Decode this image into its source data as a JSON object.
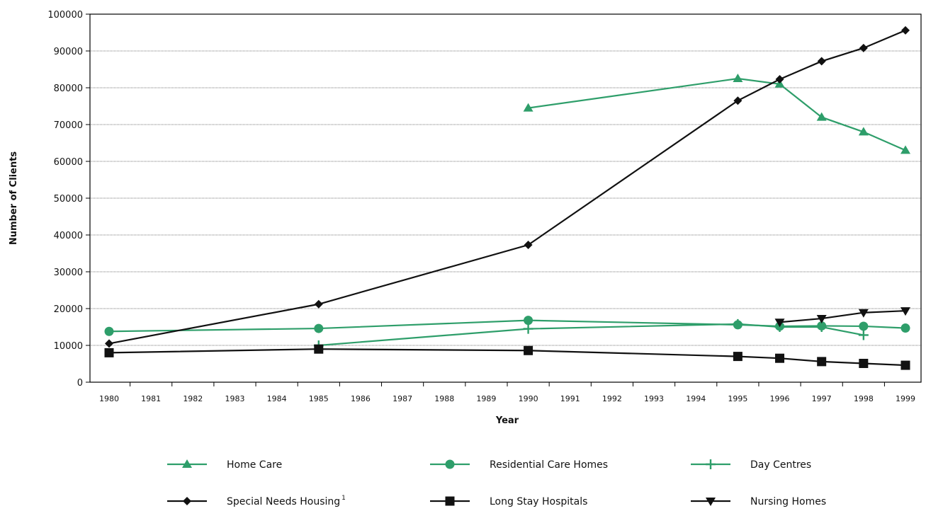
{
  "chart_data": {
    "type": "line",
    "xlabel": "Year",
    "ylabel": "Number of Clients",
    "ylim": [
      0,
      100000
    ],
    "yticks": [
      0,
      10000,
      20000,
      30000,
      40000,
      50000,
      60000,
      70000,
      80000,
      90000,
      100000
    ],
    "xlim": [
      1980,
      1999
    ],
    "xticks": [
      1980,
      1981,
      1982,
      1983,
      1984,
      1985,
      1986,
      1987,
      1988,
      1989,
      1990,
      1991,
      1992,
      1993,
      1994,
      1995,
      1996,
      1997,
      1998,
      1999
    ],
    "grid": "horizontal",
    "legend_placement": "bottom",
    "series": [
      {
        "name": "Home Care",
        "color": "#2e9e6a",
        "marker": "triangle-up",
        "x": [
          1990,
          1995,
          1996,
          1997,
          1998,
          1999
        ],
        "values": [
          74500,
          82500,
          81000,
          72000,
          68000,
          63000
        ]
      },
      {
        "name": "Residential Care Homes",
        "color": "#2e9e6a",
        "marker": "circle",
        "x": [
          1980,
          1985,
          1990,
          1995,
          1996,
          1997,
          1998,
          1999
        ],
        "values": [
          13800,
          14600,
          16800,
          15600,
          15200,
          15300,
          15200,
          14700
        ]
      },
      {
        "name": "Day Centres",
        "color": "#2e9e6a",
        "marker": "plus",
        "x": [
          1985,
          1990,
          1995,
          1996,
          1997,
          1998
        ],
        "values": [
          10000,
          14500,
          15800,
          15000,
          15000,
          12800
        ]
      },
      {
        "name": "Special Needs Housing",
        "name_sup": "1",
        "color": "#111111",
        "marker": "diamond",
        "x": [
          1980,
          1985,
          1990,
          1995,
          1996,
          1997,
          1998,
          1999
        ],
        "values": [
          10500,
          21200,
          37300,
          76500,
          82300,
          87200,
          90800,
          95600
        ]
      },
      {
        "name": "Long Stay Hospitals",
        "color": "#111111",
        "marker": "square",
        "x": [
          1980,
          1985,
          1990,
          1995,
          1996,
          1997,
          1998,
          1999
        ],
        "values": [
          8000,
          9000,
          8600,
          7000,
          6500,
          5600,
          5100,
          4600
        ]
      },
      {
        "name": "Nursing Homes",
        "color": "#111111",
        "marker": "triangle-down",
        "x": [
          1996,
          1997,
          1998,
          1999
        ],
        "values": [
          16300,
          17300,
          18900,
          19400
        ]
      }
    ]
  }
}
